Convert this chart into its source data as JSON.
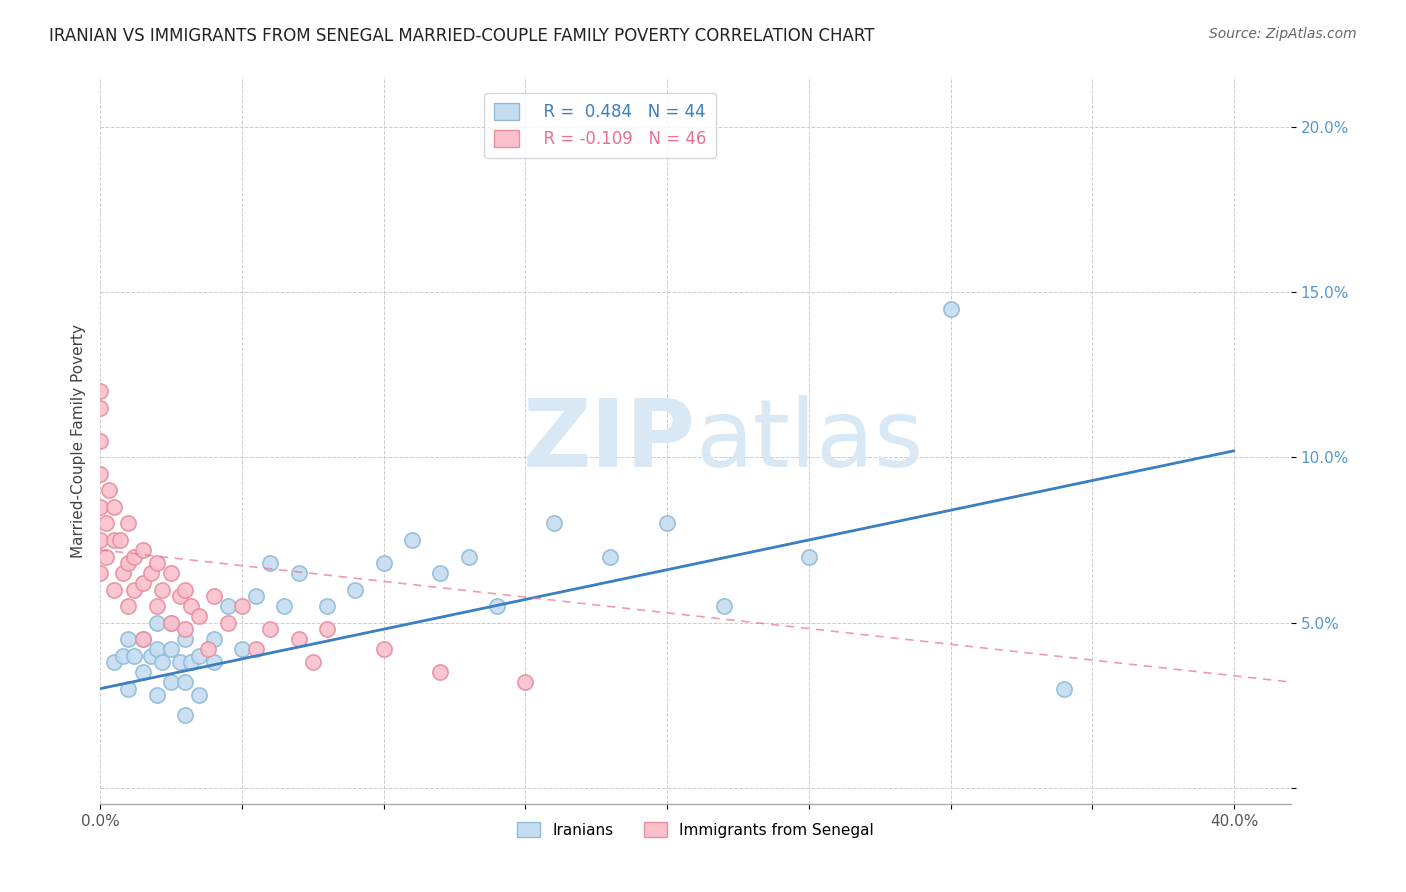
{
  "title": "IRANIAN VS IMMIGRANTS FROM SENEGAL MARRIED-COUPLE FAMILY POVERTY CORRELATION CHART",
  "source": "Source: ZipAtlas.com",
  "ylabel": "Married-Couple Family Poverty",
  "xlim": [
    0.0,
    0.42
  ],
  "ylim": [
    -0.005,
    0.215
  ],
  "xticks": [
    0.0,
    0.05,
    0.1,
    0.15,
    0.2,
    0.25,
    0.3,
    0.35,
    0.4
  ],
  "yticks": [
    0.0,
    0.05,
    0.1,
    0.15,
    0.2
  ],
  "legend_r1": "R =  0.484   N = 44",
  "legend_r2": "R = -0.109   N = 46",
  "iranian_color": "#c5dcf0",
  "iranian_edge_color": "#90bcd8",
  "senegal_color": "#f9c0cc",
  "senegal_edge_color": "#e8909f",
  "iranian_line_color": "#3a7fc1",
  "senegal_line_color": "#e87090",
  "watermark_zip": "ZIP",
  "watermark_atlas": "atlas",
  "iranians_x": [
    0.005,
    0.008,
    0.01,
    0.01,
    0.012,
    0.015,
    0.015,
    0.018,
    0.02,
    0.02,
    0.02,
    0.022,
    0.025,
    0.025,
    0.025,
    0.028,
    0.03,
    0.03,
    0.03,
    0.032,
    0.035,
    0.035,
    0.04,
    0.04,
    0.045,
    0.05,
    0.055,
    0.06,
    0.065,
    0.07,
    0.08,
    0.09,
    0.1,
    0.11,
    0.12,
    0.13,
    0.14,
    0.16,
    0.18,
    0.2,
    0.22,
    0.25,
    0.3,
    0.34
  ],
  "iranians_y": [
    0.038,
    0.04,
    0.045,
    0.03,
    0.04,
    0.045,
    0.035,
    0.04,
    0.05,
    0.042,
    0.028,
    0.038,
    0.05,
    0.042,
    0.032,
    0.038,
    0.045,
    0.032,
    0.022,
    0.038,
    0.04,
    0.028,
    0.045,
    0.038,
    0.055,
    0.042,
    0.058,
    0.068,
    0.055,
    0.065,
    0.055,
    0.06,
    0.068,
    0.075,
    0.065,
    0.07,
    0.055,
    0.08,
    0.07,
    0.08,
    0.055,
    0.07,
    0.145,
    0.03
  ],
  "senegal_x": [
    0.0,
    0.0,
    0.0,
    0.0,
    0.0,
    0.0,
    0.0,
    0.002,
    0.002,
    0.003,
    0.005,
    0.005,
    0.005,
    0.007,
    0.008,
    0.01,
    0.01,
    0.01,
    0.012,
    0.012,
    0.015,
    0.015,
    0.015,
    0.018,
    0.02,
    0.02,
    0.022,
    0.025,
    0.025,
    0.028,
    0.03,
    0.03,
    0.032,
    0.035,
    0.038,
    0.04,
    0.045,
    0.05,
    0.055,
    0.06,
    0.07,
    0.075,
    0.08,
    0.1,
    0.12,
    0.15
  ],
  "senegal_y": [
    0.12,
    0.115,
    0.105,
    0.095,
    0.085,
    0.075,
    0.065,
    0.08,
    0.07,
    0.09,
    0.085,
    0.075,
    0.06,
    0.075,
    0.065,
    0.08,
    0.068,
    0.055,
    0.07,
    0.06,
    0.072,
    0.062,
    0.045,
    0.065,
    0.068,
    0.055,
    0.06,
    0.065,
    0.05,
    0.058,
    0.06,
    0.048,
    0.055,
    0.052,
    0.042,
    0.058,
    0.05,
    0.055,
    0.042,
    0.048,
    0.045,
    0.038,
    0.048,
    0.042,
    0.035,
    0.032
  ],
  "iranian_line_x": [
    0.0,
    0.4
  ],
  "iranian_line_y_start": 0.03,
  "iranian_line_y_end": 0.102,
  "senegal_line_x": [
    0.0,
    0.42
  ],
  "senegal_line_y_start": 0.072,
  "senegal_line_y_end": 0.032
}
